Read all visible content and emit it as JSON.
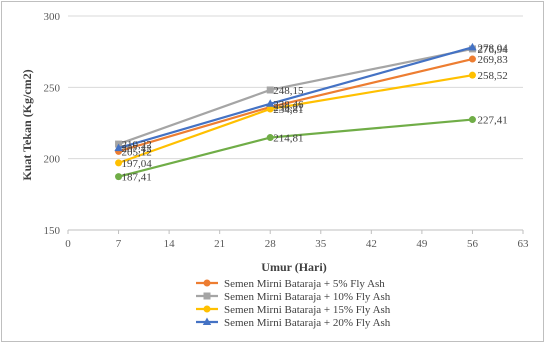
{
  "chart_data": {
    "type": "line",
    "title": "",
    "xlabel": "Umur (Hari)",
    "ylabel": "Kuat Tekan (Kg/cm2)",
    "xlim": [
      0,
      63
    ],
    "ylim": [
      150,
      300
    ],
    "xticks": [
      "0",
      "7",
      "14",
      "21",
      "28",
      "35",
      "42",
      "49",
      "56",
      "63"
    ],
    "yticks": [
      "150",
      "200",
      "250",
      "300"
    ],
    "x": [
      7,
      28,
      56
    ],
    "grid": "horizontal",
    "legend_position": "bottom",
    "series": [
      {
        "name": "Semen Mirni Bataraja + 5% Fly Ash",
        "color": "#ed7d31",
        "marker": "circle",
        "values": [
          205.12,
          236.21,
          269.83
        ],
        "labels": [
          "205,12",
          "236,21",
          "269,83"
        ]
      },
      {
        "name": "Semen Mirni Bataraja + 10% Fly Ash",
        "color": "#a5a5a5",
        "marker": "square",
        "values": [
          210.22,
          248.15,
          276.94
        ],
        "labels": [
          "210,22",
          "248,15",
          "276,94"
        ]
      },
      {
        "name": "Semen Mirni Bataraja + 15% Fly Ash",
        "color": "#ffc000",
        "marker": "circle",
        "values": [
          197.04,
          234.81,
          258.52
        ],
        "labels": [
          "197,04",
          "234,81",
          "258,52"
        ]
      },
      {
        "name": "Semen Mirni Bataraja + 20% Fly Ash",
        "color": "#4472c4",
        "marker": "triangle",
        "values": [
          207.42,
          238.46,
          278.04
        ],
        "labels": [
          "207,42",
          "238,46",
          "278,04"
        ]
      },
      {
        "name": "",
        "color": "#70ad47",
        "marker": "circle",
        "values": [
          187.41,
          214.81,
          227.41
        ],
        "labels": [
          "187,41",
          "214,81",
          "227,41"
        ]
      }
    ]
  }
}
